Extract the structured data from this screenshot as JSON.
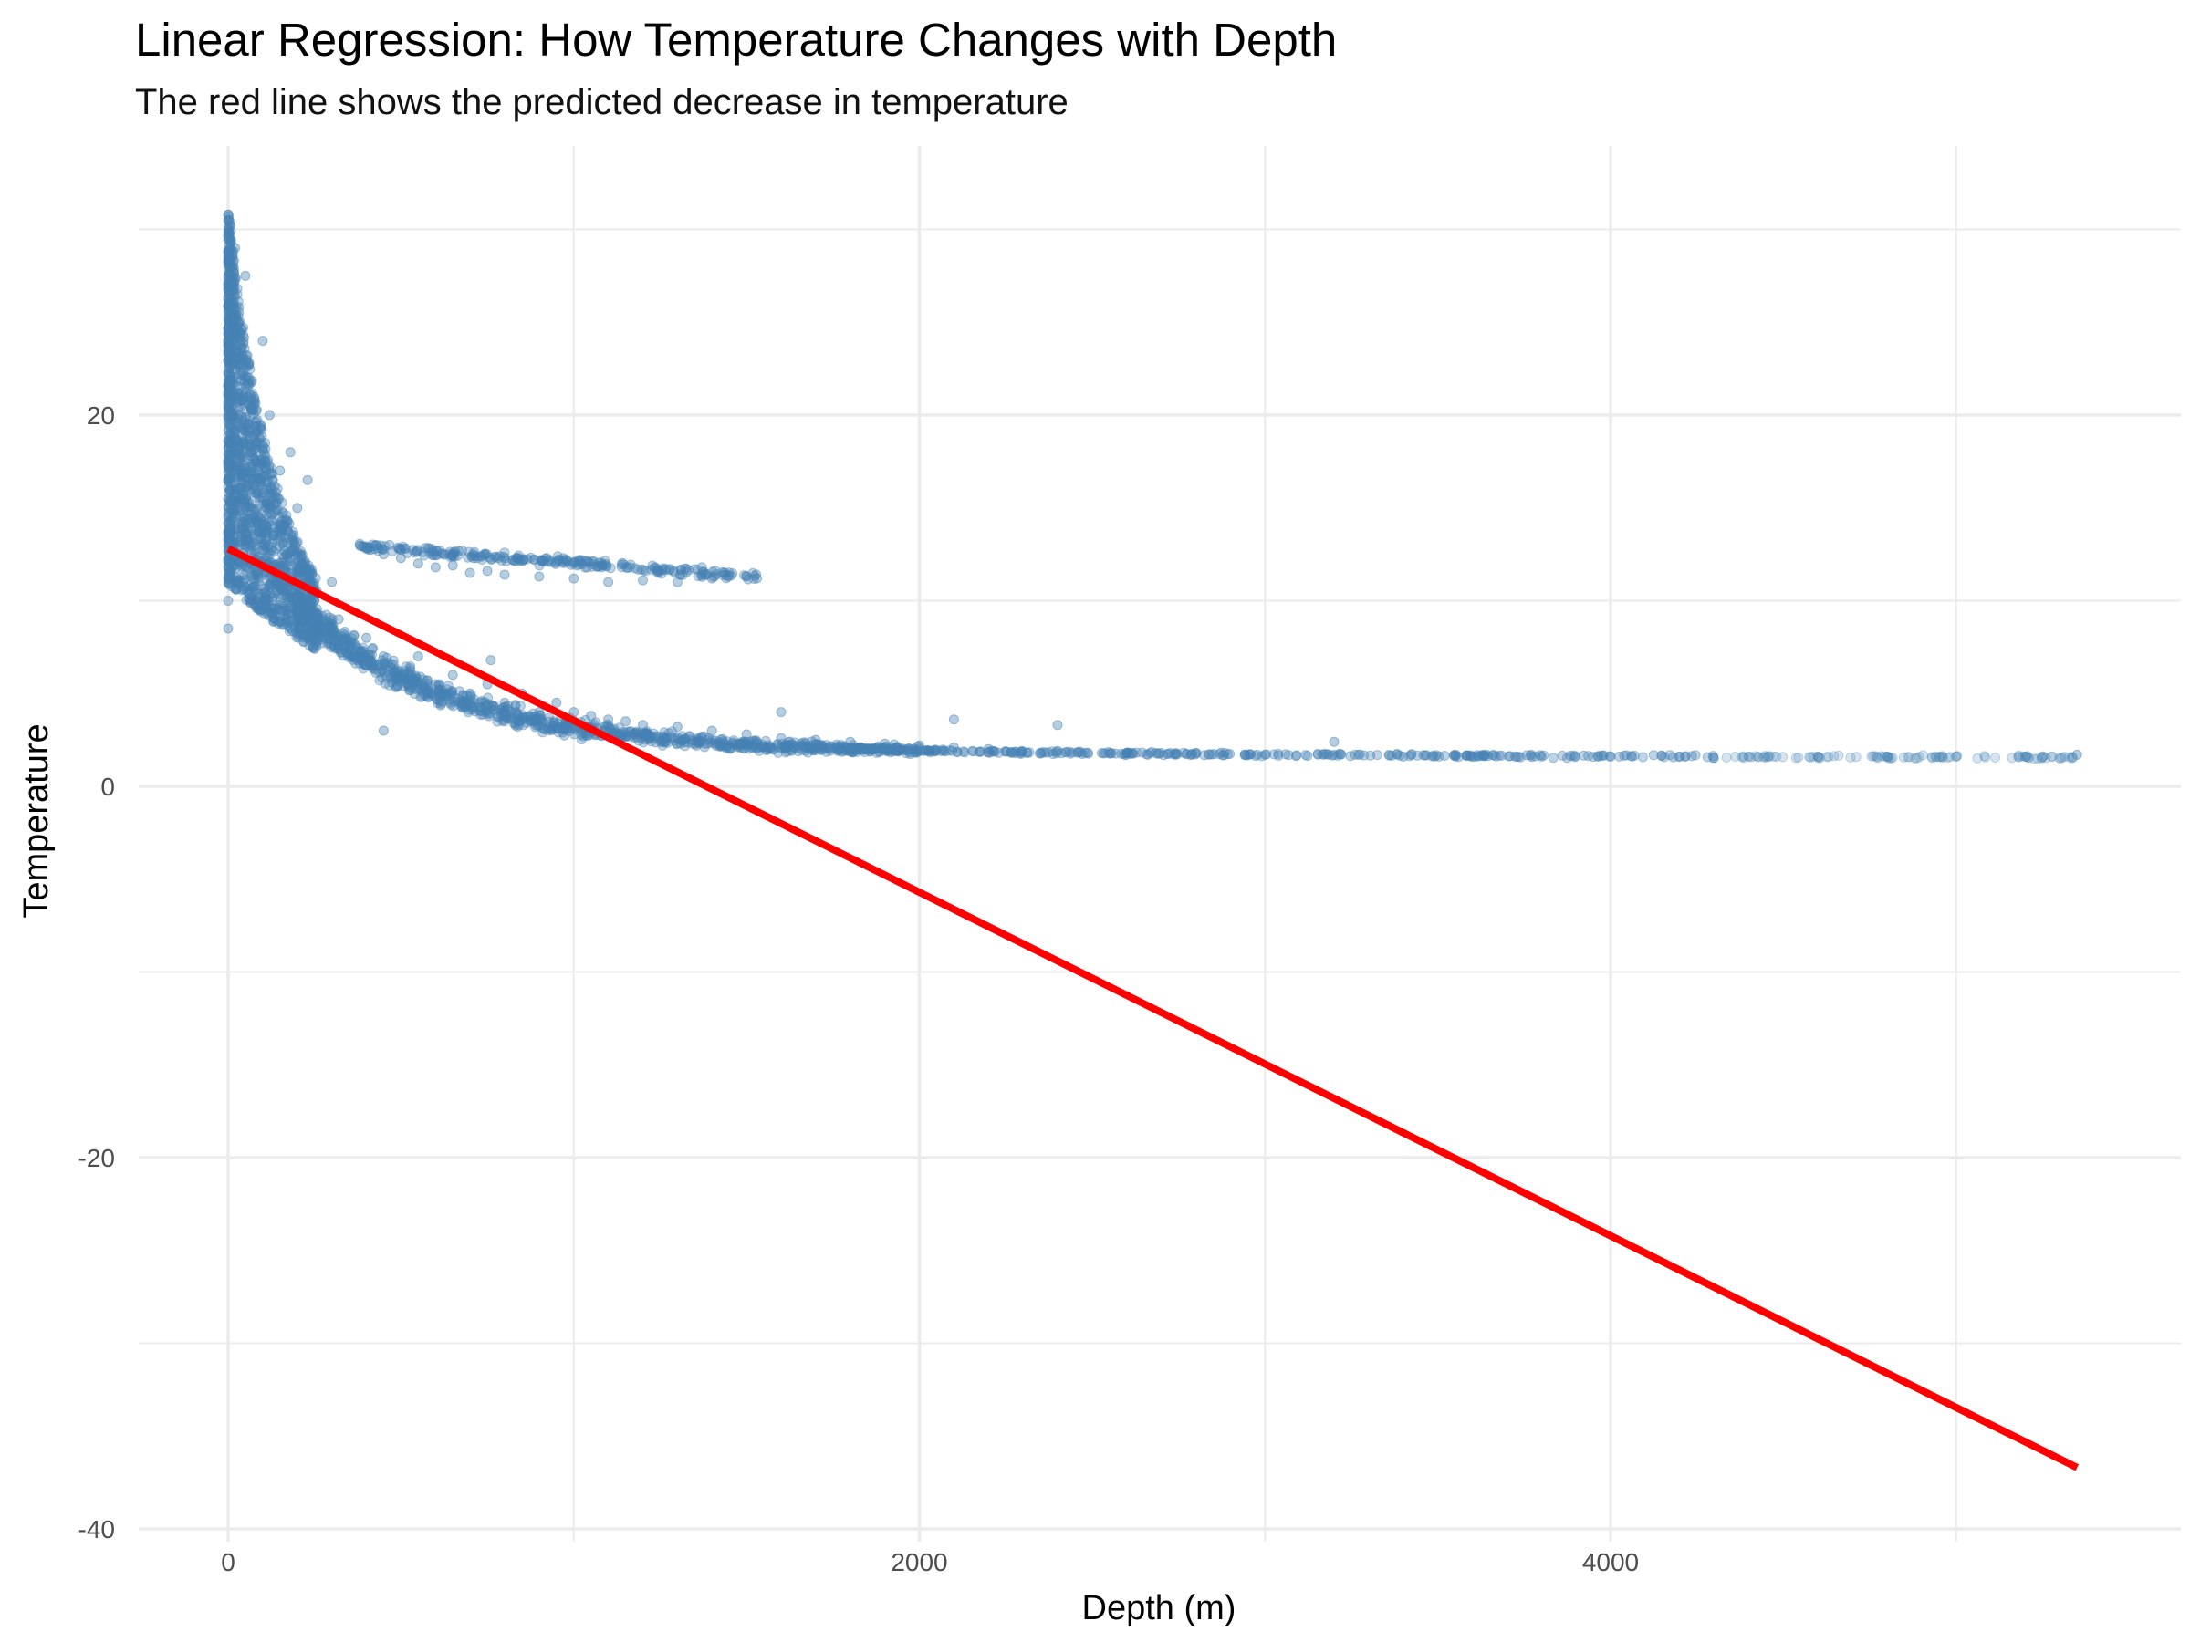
{
  "chart_data": {
    "type": "scatter",
    "title": "Linear Regression: How Temperature Changes with Depth",
    "subtitle": "The red line shows the predicted decrease in temperature",
    "xlabel": "Depth (m)",
    "ylabel": "Temperature",
    "xlim": [
      -250,
      5550
    ],
    "ylim": [
      -40,
      32
    ],
    "x_ticks": [
      0,
      2000,
      4000
    ],
    "x_tick_labels": [
      "0",
      "2000",
      "4000"
    ],
    "x_minor_gridlines": [
      1000,
      3000,
      5000
    ],
    "y_ticks": [
      -40,
      -20,
      0,
      20
    ],
    "y_tick_labels": [
      "-40",
      "-20",
      "0",
      "20"
    ],
    "y_minor_gridlines": [
      -30,
      -10,
      10,
      30
    ],
    "grid": true,
    "legend": "none",
    "colors": {
      "points": "#4682B4",
      "regression_line": "#FF0000",
      "grid": "#EBEBEB"
    },
    "scatter_series": {
      "name": "",
      "description_points": [
        [
          0,
          30.5
        ],
        [
          0,
          27
        ],
        [
          0,
          24
        ],
        [
          0,
          20
        ],
        [
          0,
          15
        ],
        [
          0,
          10
        ],
        [
          0,
          8.5
        ],
        [
          20,
          29
        ],
        [
          30,
          25
        ],
        [
          50,
          27.5
        ],
        [
          60,
          22
        ],
        [
          80,
          19
        ],
        [
          100,
          24
        ],
        [
          100,
          12
        ],
        [
          120,
          20
        ],
        [
          150,
          17
        ],
        [
          180,
          18
        ],
        [
          200,
          15
        ],
        [
          200,
          10
        ],
        [
          230,
          16.5
        ],
        [
          250,
          8
        ],
        [
          300,
          11
        ],
        [
          320,
          9
        ],
        [
          350,
          7.5
        ],
        [
          400,
          8
        ],
        [
          400,
          6.5
        ],
        [
          450,
          7
        ],
        [
          500,
          6
        ],
        [
          550,
          7
        ],
        [
          600,
          5.5
        ],
        [
          650,
          6
        ],
        [
          700,
          5
        ],
        [
          750,
          5.5
        ],
        [
          800,
          4.5
        ],
        [
          850,
          5
        ],
        [
          900,
          4
        ],
        [
          950,
          4.5
        ],
        [
          1000,
          4
        ],
        [
          1050,
          3.8
        ],
        [
          1100,
          3.6
        ],
        [
          1150,
          3.5
        ],
        [
          1200,
          3.3
        ],
        [
          1300,
          3.2
        ],
        [
          1400,
          3.0
        ],
        [
          1500,
          2.8
        ],
        [
          1600,
          2.6
        ],
        [
          1700,
          2.5
        ],
        [
          1800,
          2.4
        ],
        [
          1900,
          2.3
        ],
        [
          2000,
          2.2
        ],
        [
          2100,
          2.1
        ],
        [
          2200,
          2.0
        ],
        [
          2400,
          1.9
        ],
        [
          2600,
          1.8
        ],
        [
          2800,
          1.8
        ],
        [
          3000,
          1.7
        ],
        [
          3200,
          1.7
        ],
        [
          3400,
          1.6
        ],
        [
          3600,
          1.6
        ],
        [
          3800,
          1.6
        ],
        [
          4000,
          1.6
        ],
        [
          4200,
          1.6
        ],
        [
          4400,
          1.6
        ],
        [
          4600,
          1.6
        ],
        [
          4800,
          1.6
        ],
        [
          5000,
          1.6
        ],
        [
          5200,
          1.6
        ],
        [
          5350,
          1.7
        ],
        [
          400,
          12.8
        ],
        [
          450,
          12.5
        ],
        [
          500,
          12.3
        ],
        [
          550,
          12.0
        ],
        [
          600,
          11.8
        ],
        [
          650,
          11.9
        ],
        [
          700,
          11.5
        ],
        [
          750,
          11.6
        ],
        [
          800,
          11.4
        ],
        [
          900,
          11.3
        ],
        [
          1000,
          11.2
        ],
        [
          1100,
          11.0
        ],
        [
          1200,
          11.1
        ],
        [
          1300,
          11.0
        ],
        [
          1400,
          11.2
        ],
        [
          1500,
          11.3
        ],
        [
          1530,
          11.2
        ],
        [
          450,
          3.0
        ],
        [
          1600,
          4.0
        ],
        [
          2100,
          3.6
        ],
        [
          2400,
          3.3
        ],
        [
          3200,
          2.4
        ],
        [
          760,
          6.8
        ]
      ]
    },
    "regression_line": {
      "name": "",
      "x": [
        0,
        5350
      ],
      "y": [
        12.8,
        -36.7
      ]
    }
  }
}
